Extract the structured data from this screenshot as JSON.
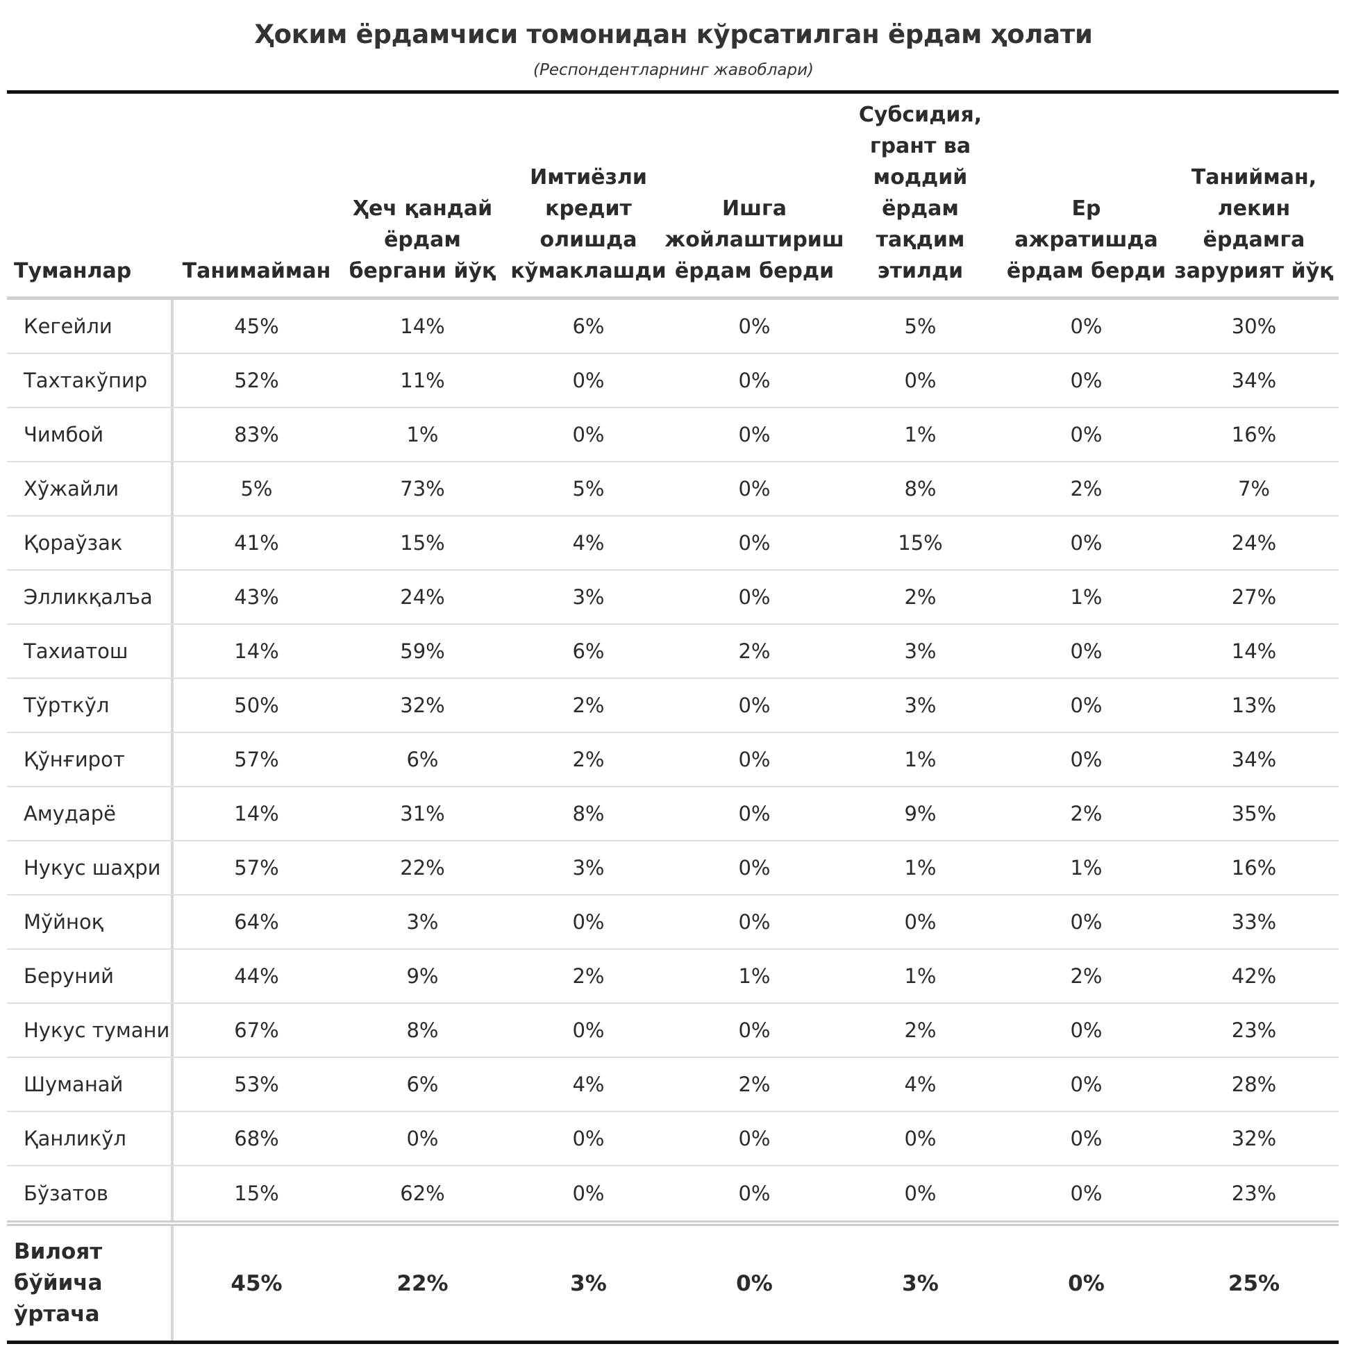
{
  "chart_data": {
    "type": "table",
    "title": "Ҳоким ёрдамчиси томонидан кўрсатилган ёрдам ҳолати",
    "subtitle": "(Респондентларнинг жавоблари)",
    "columns": [
      "Туманлар",
      "Танимайман",
      "Ҳеч қандай ёрдам бергани йўқ",
      "Имтиёзли кредит олишда кўмаклашди",
      "Ишга жойлаштириш ёрдам берди",
      "Субсидия, грант ва моддий ёрдам тақдим этилди",
      "Ер ажратишда ёрдам берди",
      "Танийман, лекин ёрдамга зарурият йўқ"
    ],
    "rows": [
      [
        "Кегейли",
        "45%",
        "14%",
        "6%",
        "0%",
        "5%",
        "0%",
        "30%"
      ],
      [
        "Тахтакўпир",
        "52%",
        "11%",
        "0%",
        "0%",
        "0%",
        "0%",
        "34%"
      ],
      [
        "Чимбой",
        "83%",
        "1%",
        "0%",
        "0%",
        "1%",
        "0%",
        "16%"
      ],
      [
        "Хўжайли",
        "5%",
        "73%",
        "5%",
        "0%",
        "8%",
        "2%",
        "7%"
      ],
      [
        "Қораўзак",
        "41%",
        "15%",
        "4%",
        "0%",
        "15%",
        "0%",
        "24%"
      ],
      [
        "Элликқалъа",
        "43%",
        "24%",
        "3%",
        "0%",
        "2%",
        "1%",
        "27%"
      ],
      [
        "Тахиатош",
        "14%",
        "59%",
        "6%",
        "2%",
        "3%",
        "0%",
        "14%"
      ],
      [
        "Тўрткўл",
        "50%",
        "32%",
        "2%",
        "0%",
        "3%",
        "0%",
        "13%"
      ],
      [
        "Қўнғирот",
        "57%",
        "6%",
        "2%",
        "0%",
        "1%",
        "0%",
        "34%"
      ],
      [
        "Амударё",
        "14%",
        "31%",
        "8%",
        "0%",
        "9%",
        "2%",
        "35%"
      ],
      [
        "Нукус шаҳри",
        "57%",
        "22%",
        "3%",
        "0%",
        "1%",
        "1%",
        "16%"
      ],
      [
        "Мўйноқ",
        "64%",
        "3%",
        "0%",
        "0%",
        "0%",
        "0%",
        "33%"
      ],
      [
        "Беруний",
        "44%",
        "9%",
        "2%",
        "1%",
        "1%",
        "2%",
        "42%"
      ],
      [
        "Нукус тумани",
        "67%",
        "8%",
        "0%",
        "0%",
        "2%",
        "0%",
        "23%"
      ],
      [
        "Шуманай",
        "53%",
        "6%",
        "4%",
        "2%",
        "4%",
        "0%",
        "28%"
      ],
      [
        "Қанликўл",
        "68%",
        "0%",
        "0%",
        "0%",
        "0%",
        "0%",
        "32%"
      ],
      [
        "Бўзатов",
        "15%",
        "62%",
        "0%",
        "0%",
        "0%",
        "0%",
        "23%"
      ]
    ],
    "footer": [
      "Вилоят бўйича ўртача",
      "45%",
      "22%",
      "3%",
      "0%",
      "3%",
      "0%",
      "25%"
    ]
  }
}
